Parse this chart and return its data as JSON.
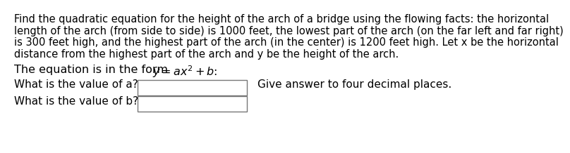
{
  "bg_color": "#ffffff",
  "text_color": "#000000",
  "font_family": "DejaVu Sans",
  "paragraph_lines": [
    "Find the quadratic equation for the height of the arch of a bridge using the flowing facts: the horizontal",
    "length of the arch (from side to side) is 1000 feet, the lowest part of the arch (on the far left and far right)",
    "is 300 feet high, and the highest part of the arch (in the center) is 1200 feet high. Let x be the horizontal",
    "distance from the highest part of the arch and y be the height of the arch."
  ],
  "eq_prefix": "The equation is in the form ",
  "eq_math": "$y = ax^2 + b$:",
  "label_a": "What is the value of a?",
  "label_b": "What is the value of b?",
  "hint": "Give answer to four decimal places.",
  "font_size_para": 10.5,
  "font_size_eq": 11.5,
  "font_size_labels": 11.0,
  "font_size_hint": 11.0
}
